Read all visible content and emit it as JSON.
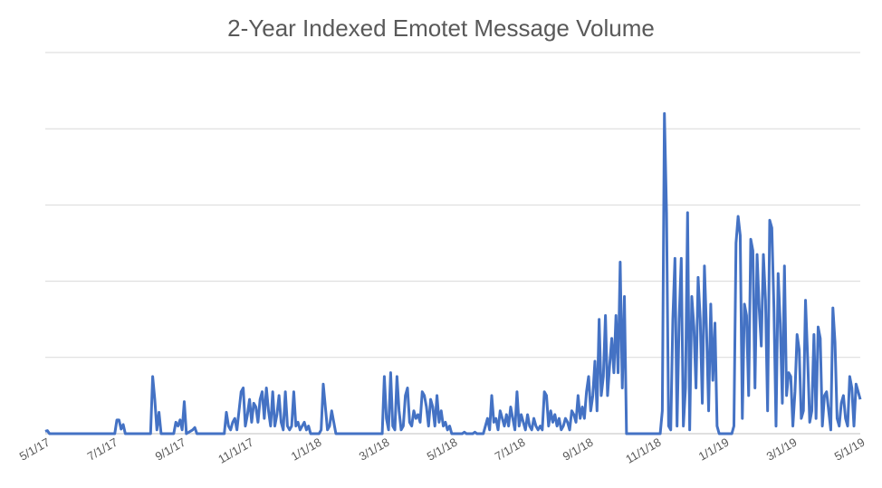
{
  "chart_data": {
    "type": "line",
    "title": "2-Year Indexed Emotet Message Volume",
    "xlabel": "",
    "ylabel": "",
    "x_tick_labels": [
      "5/1/17",
      "7/1/17",
      "9/1/17",
      "11/1/17",
      "1/1/18",
      "3/1/18",
      "5/1/18",
      "7/1/18",
      "9/1/18",
      "11/1/18",
      "1/1/19",
      "3/1/19",
      "5/1/19"
    ],
    "y_axis_labels_shown": false,
    "ylim": [
      0,
      5
    ],
    "y_gridlines": [
      0,
      1,
      2,
      3,
      4,
      5
    ],
    "grid": "horizontal",
    "legend": "none",
    "line_color": "#4472C4",
    "series": [
      {
        "values": [
          [
            0,
            0.03
          ],
          [
            1,
            0.04
          ],
          [
            2,
            0
          ],
          [
            33,
            0
          ],
          [
            34,
            0.18
          ],
          [
            35,
            0.18
          ],
          [
            36,
            0.06
          ],
          [
            37,
            0.12
          ],
          [
            38,
            0
          ],
          [
            50,
            0
          ],
          [
            51,
            0.75
          ],
          [
            52,
            0.45
          ],
          [
            53,
            0.05
          ],
          [
            54,
            0.28
          ],
          [
            55,
            0
          ],
          [
            61,
            0
          ],
          [
            62,
            0.15
          ],
          [
            63,
            0.1
          ],
          [
            64,
            0.18
          ],
          [
            65,
            0.05
          ],
          [
            66,
            0.42
          ],
          [
            67,
            0
          ],
          [
            70,
            0.05
          ],
          [
            71,
            0.08
          ],
          [
            72,
            0
          ],
          [
            85,
            0
          ],
          [
            86,
            0.28
          ],
          [
            87,
            0.1
          ],
          [
            88,
            0.05
          ],
          [
            89,
            0.15
          ],
          [
            90,
            0.2
          ],
          [
            91,
            0.05
          ],
          [
            92,
            0.3
          ],
          [
            93,
            0.55
          ],
          [
            94,
            0.6
          ],
          [
            95,
            0.1
          ],
          [
            96,
            0.25
          ],
          [
            97,
            0.45
          ],
          [
            98,
            0.15
          ],
          [
            99,
            0.4
          ],
          [
            100,
            0.35
          ],
          [
            101,
            0.15
          ],
          [
            102,
            0.45
          ],
          [
            103,
            0.55
          ],
          [
            104,
            0.2
          ],
          [
            105,
            0.6
          ],
          [
            106,
            0.3
          ],
          [
            107,
            0.1
          ],
          [
            108,
            0.55
          ],
          [
            109,
            0.1
          ],
          [
            110,
            0.25
          ],
          [
            111,
            0.5
          ],
          [
            112,
            0.15
          ],
          [
            113,
            0.05
          ],
          [
            114,
            0.55
          ],
          [
            115,
            0.1
          ],
          [
            116,
            0.05
          ],
          [
            117,
            0.1
          ],
          [
            118,
            0.55
          ],
          [
            119,
            0.1
          ],
          [
            120,
            0.15
          ],
          [
            121,
            0.05
          ],
          [
            122,
            0.1
          ],
          [
            123,
            0.15
          ],
          [
            124,
            0.05
          ],
          [
            125,
            0.1
          ],
          [
            126,
            0
          ],
          [
            130,
            0
          ],
          [
            131,
            0.05
          ],
          [
            132,
            0.65
          ],
          [
            133,
            0.35
          ],
          [
            134,
            0.05
          ],
          [
            135,
            0.1
          ],
          [
            136,
            0.3
          ],
          [
            137,
            0.15
          ],
          [
            138,
            0
          ],
          [
            160,
            0
          ],
          [
            161,
            0.75
          ],
          [
            162,
            0.2
          ],
          [
            163,
            0.05
          ],
          [
            164,
            0.8
          ],
          [
            165,
            0.1
          ],
          [
            166,
            0.05
          ],
          [
            167,
            0.75
          ],
          [
            168,
            0.3
          ],
          [
            169,
            0.05
          ],
          [
            170,
            0.1
          ],
          [
            171,
            0.5
          ],
          [
            172,
            0.6
          ],
          [
            173,
            0.15
          ],
          [
            174,
            0.1
          ],
          [
            175,
            0.3
          ],
          [
            176,
            0.2
          ],
          [
            177,
            0.25
          ],
          [
            178,
            0.15
          ],
          [
            179,
            0.55
          ],
          [
            180,
            0.5
          ],
          [
            181,
            0.35
          ],
          [
            182,
            0.1
          ],
          [
            183,
            0.45
          ],
          [
            184,
            0.35
          ],
          [
            185,
            0.1
          ],
          [
            186,
            0.5
          ],
          [
            187,
            0.15
          ],
          [
            188,
            0.3
          ],
          [
            189,
            0.1
          ],
          [
            190,
            0.15
          ],
          [
            191,
            0.05
          ],
          [
            192,
            0.1
          ],
          [
            193,
            0
          ],
          [
            198,
            0
          ],
          [
            199,
            0.02
          ],
          [
            200,
            0
          ],
          [
            203,
            0
          ],
          [
            204,
            0.02
          ],
          [
            205,
            0
          ],
          [
            208,
            0
          ],
          [
            209,
            0.1
          ],
          [
            210,
            0.2
          ],
          [
            211,
            0.05
          ],
          [
            212,
            0.5
          ],
          [
            213,
            0.15
          ],
          [
            214,
            0.2
          ],
          [
            215,
            0.05
          ],
          [
            216,
            0.3
          ],
          [
            217,
            0.2
          ],
          [
            218,
            0.1
          ],
          [
            219,
            0.25
          ],
          [
            220,
            0.1
          ],
          [
            221,
            0.35
          ],
          [
            222,
            0.2
          ],
          [
            223,
            0.05
          ],
          [
            224,
            0.55
          ],
          [
            225,
            0.1
          ],
          [
            226,
            0.25
          ],
          [
            227,
            0.15
          ],
          [
            228,
            0.05
          ],
          [
            229,
            0.25
          ],
          [
            230,
            0.1
          ],
          [
            231,
            0.05
          ],
          [
            232,
            0.2
          ],
          [
            233,
            0.1
          ],
          [
            234,
            0.05
          ],
          [
            235,
            0.1
          ],
          [
            236,
            0.05
          ],
          [
            237,
            0.55
          ],
          [
            238,
            0.5
          ],
          [
            239,
            0.1
          ],
          [
            240,
            0.3
          ],
          [
            241,
            0.15
          ],
          [
            242,
            0.25
          ],
          [
            243,
            0.1
          ],
          [
            244,
            0.2
          ],
          [
            245,
            0.05
          ],
          [
            246,
            0.1
          ],
          [
            247,
            0.2
          ],
          [
            248,
            0.15
          ],
          [
            249,
            0.05
          ],
          [
            250,
            0.3
          ],
          [
            251,
            0.25
          ],
          [
            252,
            0.15
          ],
          [
            253,
            0.5
          ],
          [
            254,
            0.2
          ],
          [
            255,
            0.35
          ],
          [
            256,
            0.2
          ],
          [
            257,
            0.55
          ],
          [
            258,
            0.75
          ],
          [
            259,
            0.3
          ],
          [
            260,
            0.5
          ],
          [
            261,
            0.95
          ],
          [
            262,
            0.3
          ],
          [
            263,
            1.5
          ],
          [
            264,
            0.5
          ],
          [
            265,
            0.75
          ],
          [
            266,
            1.55
          ],
          [
            267,
            0.5
          ],
          [
            268,
            0.9
          ],
          [
            269,
            1.25
          ],
          [
            270,
            0.8
          ],
          [
            271,
            1.55
          ],
          [
            272,
            0.8
          ],
          [
            273,
            2.25
          ],
          [
            274,
            0.6
          ],
          [
            275,
            1.8
          ],
          [
            276,
            0
          ],
          [
            292,
            0
          ],
          [
            293,
            0.3
          ],
          [
            294,
            4.2
          ],
          [
            295,
            2.9
          ],
          [
            296,
            0.1
          ],
          [
            297,
            0.05
          ],
          [
            298,
            1.5
          ],
          [
            299,
            2.3
          ],
          [
            300,
            0.1
          ],
          [
            301,
            1.5
          ],
          [
            302,
            2.3
          ],
          [
            303,
            0.1
          ],
          [
            304,
            0.6
          ],
          [
            305,
            2.9
          ],
          [
            306,
            0.05
          ],
          [
            307,
            1.8
          ],
          [
            308,
            1.4
          ],
          [
            309,
            0.6
          ],
          [
            310,
            2.05
          ],
          [
            311,
            1.5
          ],
          [
            312,
            0.4
          ],
          [
            313,
            2.2
          ],
          [
            314,
            1.35
          ],
          [
            315,
            0.3
          ],
          [
            316,
            1.7
          ],
          [
            317,
            0.7
          ],
          [
            318,
            1.45
          ],
          [
            319,
            0.1
          ],
          [
            320,
            0
          ],
          [
            326,
            0
          ],
          [
            327,
            0.1
          ],
          [
            328,
            2.5
          ],
          [
            329,
            2.85
          ],
          [
            330,
            2.6
          ],
          [
            331,
            0.2
          ],
          [
            332,
            1.7
          ],
          [
            333,
            1.55
          ],
          [
            334,
            0.5
          ],
          [
            335,
            2.55
          ],
          [
            336,
            2.4
          ],
          [
            337,
            0.6
          ],
          [
            338,
            2.35
          ],
          [
            339,
            1.65
          ],
          [
            340,
            1.15
          ],
          [
            341,
            2.35
          ],
          [
            342,
            1.75
          ],
          [
            343,
            0.3
          ],
          [
            344,
            2.8
          ],
          [
            345,
            2.7
          ],
          [
            346,
            1.65
          ],
          [
            347,
            0.1
          ],
          [
            348,
            2.1
          ],
          [
            349,
            1.45
          ],
          [
            350,
            0.4
          ],
          [
            351,
            2.2
          ],
          [
            352,
            0.5
          ],
          [
            353,
            0.8
          ],
          [
            354,
            0.75
          ],
          [
            355,
            0.1
          ],
          [
            356,
            0.55
          ],
          [
            357,
            1.3
          ],
          [
            358,
            1.1
          ],
          [
            359,
            0.2
          ],
          [
            360,
            0.3
          ],
          [
            361,
            1.75
          ],
          [
            362,
            1.0
          ],
          [
            363,
            0.15
          ],
          [
            364,
            0.3
          ],
          [
            365,
            1.3
          ],
          [
            366,
            0.2
          ],
          [
            367,
            1.4
          ],
          [
            368,
            1.25
          ],
          [
            369,
            0.1
          ],
          [
            370,
            0.5
          ],
          [
            371,
            0.55
          ],
          [
            372,
            0.3
          ],
          [
            373,
            0.05
          ],
          [
            374,
            1.65
          ],
          [
            375,
            1.2
          ],
          [
            376,
            0.2
          ],
          [
            377,
            0.1
          ],
          [
            378,
            0.4
          ],
          [
            379,
            0.5
          ],
          [
            380,
            0.2
          ],
          [
            381,
            0.1
          ],
          [
            382,
            0.75
          ],
          [
            383,
            0.6
          ],
          [
            384,
            0.1
          ],
          [
            385,
            0.65
          ],
          [
            386,
            0.55
          ],
          [
            387,
            0.45
          ]
        ]
      }
    ]
  }
}
